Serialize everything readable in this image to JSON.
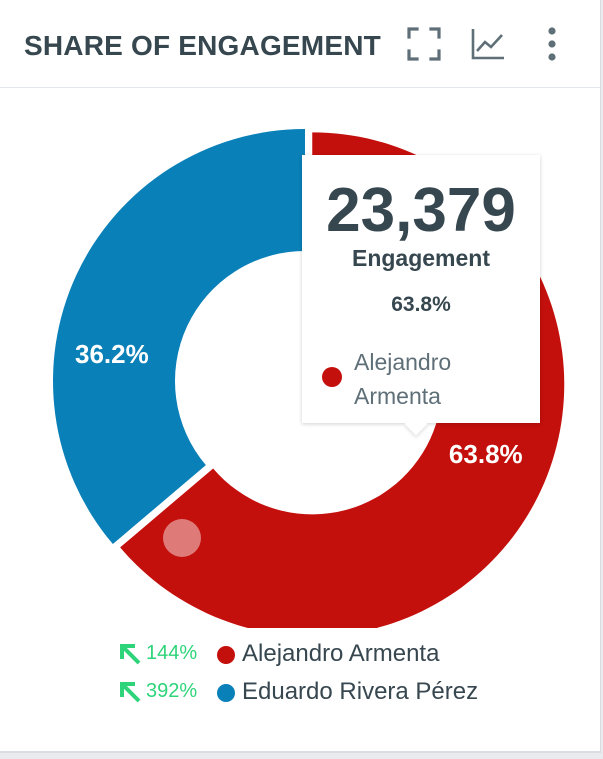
{
  "header": {
    "title": "SHARE OF ENGAGEMENT",
    "icons": [
      "fullscreen-icon",
      "line-chart-icon",
      "more-vertical-icon"
    ]
  },
  "chart_data": {
    "type": "pie",
    "donut": true,
    "series": [
      {
        "name": "Alejandro Armenta",
        "value": 63.8,
        "label": "63.8%",
        "color": "#c4100c"
      },
      {
        "name": "Eduardo Rivera Pérez",
        "value": 36.2,
        "label": "36.2%",
        "color": "#0a80b8"
      }
    ],
    "legend_placement": "bottom"
  },
  "tooltip": {
    "value": "23,379",
    "metric": "Engagement",
    "percent": "63.8%",
    "series_name": "Alejandro Armenta",
    "color": "#c4100c"
  },
  "legend": {
    "items": [
      {
        "trend": "144%",
        "name": "Alejandro Armenta",
        "color": "#c4100c"
      },
      {
        "trend": "392%",
        "name": "Eduardo Rivera Pérez",
        "color": "#0a80b8"
      }
    ]
  },
  "colors": {
    "trend_up": "#2ed47a",
    "text": "#37474f"
  }
}
